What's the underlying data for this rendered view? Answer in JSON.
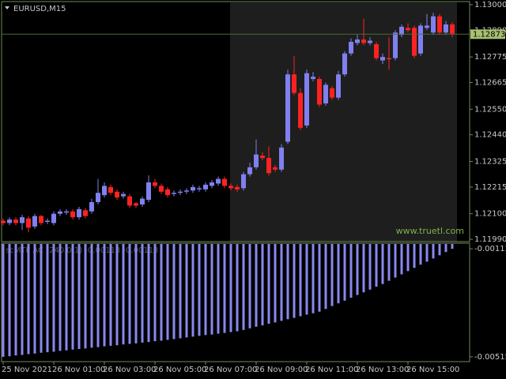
{
  "chart_data": [
    {
      "type": "candlestick",
      "title": "EURUSD,M15",
      "watermark": "www.truetl.com",
      "bull_color": "#8080f0",
      "bear_color": "#ff2222",
      "ylim": [
        1.1198,
        1.1301
      ],
      "yticks": [
        {
          "value": 1.13,
          "label": "1.13000"
        },
        {
          "value": 1.1289,
          "label": "1.12890"
        },
        1.12775,
        1.12665,
        {
          "value": 1.1255,
          "label": "1.12550"
        },
        {
          "value": 1.1244,
          "label": "1.12440"
        },
        1.12325,
        1.12215,
        {
          "value": 1.121,
          "label": "1.12100"
        },
        {
          "value": 1.1199,
          "label": "1.11990"
        }
      ],
      "current_price": 1.12873,
      "xticks": [
        {
          "value": 0,
          "label": "25 Nov 2021"
        },
        {
          "value": 8,
          "label": "26 Nov 01:00"
        },
        {
          "value": 16,
          "label": "26 Nov 03:00"
        },
        {
          "value": 24,
          "label": "26 Nov 05:00"
        },
        {
          "value": 32,
          "label": "26 Nov 07:00"
        },
        {
          "value": 40,
          "label": "26 Nov 09:00"
        },
        {
          "value": 48,
          "label": "26 Nov 11:00"
        },
        {
          "value": 56,
          "label": "26 Nov 13:00"
        },
        {
          "value": 64,
          "label": "26 Nov 15:00"
        }
      ],
      "open": [
        1.1207,
        1.1206,
        1.12075,
        1.1206,
        1.1208,
        1.12045,
        1.1209,
        1.12065,
        1.1206,
        1.121,
        1.12105,
        1.1211,
        1.12085,
        1.12115,
        1.1211,
        1.1215,
        1.1218,
        1.12215,
        1.12195,
        1.12175,
        1.12175,
        1.12145,
        1.1214,
        1.1216,
        1.12235,
        1.1222,
        1.12205,
        1.12185,
        1.1219,
        1.12195,
        1.122,
        1.12205,
        1.12205,
        1.1222,
        1.1223,
        1.1225,
        1.1222,
        1.12215,
        1.1221,
        1.1227,
        1.123,
        1.1235,
        1.1234,
        1.123,
        1.1229,
        1.1241,
        1.127,
        1.1262,
        1.1248,
        1.1268,
        1.1268,
        1.12575,
        1.1264,
        1.126,
        1.127,
        1.1279,
        1.12835,
        1.1285,
        1.12835,
        1.1283,
        1.1276,
        1.1277,
        1.1277,
        1.1287,
        1.129,
        1.129,
        1.1279,
        1.129,
        1.1288,
        1.1295,
        1.1288,
        1.12915
      ],
      "high": [
        1.1208,
        1.12085,
        1.12085,
        1.12095,
        1.1209,
        1.121,
        1.12095,
        1.1208,
        1.1211,
        1.1212,
        1.1212,
        1.1212,
        1.1213,
        1.12125,
        1.12165,
        1.1225,
        1.12235,
        1.12225,
        1.12205,
        1.12195,
        1.12185,
        1.1215,
        1.12175,
        1.12265,
        1.1225,
        1.1223,
        1.12215,
        1.122,
        1.12205,
        1.1221,
        1.12225,
        1.1222,
        1.12235,
        1.12245,
        1.1226,
        1.1226,
        1.1223,
        1.12225,
        1.1228,
        1.1232,
        1.1242,
        1.12365,
        1.1239,
        1.1231,
        1.124,
        1.1272,
        1.1278,
        1.1264,
        1.1272,
        1.1271,
        1.1269,
        1.12665,
        1.1265,
        1.12715,
        1.128,
        1.12855,
        1.1287,
        1.1294,
        1.1286,
        1.1284,
        1.1279,
        1.1286,
        1.1289,
        1.12915,
        1.1292,
        1.1291,
        1.1292,
        1.1296,
        1.12965,
        1.1296,
        1.1293,
        1.12925
      ],
      "low": [
        1.1205,
        1.1205,
        1.1205,
        1.1203,
        1.1202,
        1.12035,
        1.1205,
        1.12055,
        1.1205,
        1.1209,
        1.12095,
        1.12075,
        1.12075,
        1.1208,
        1.121,
        1.1214,
        1.1217,
        1.1218,
        1.1216,
        1.12165,
        1.12125,
        1.12125,
        1.1213,
        1.1215,
        1.1221,
        1.12185,
        1.1217,
        1.12175,
        1.1218,
        1.12185,
        1.1219,
        1.12195,
        1.12195,
        1.1221,
        1.1222,
        1.1221,
        1.122,
        1.12195,
        1.122,
        1.1226,
        1.1229,
        1.1233,
        1.12265,
        1.1228,
        1.1228,
        1.124,
        1.1261,
        1.1246,
        1.1247,
        1.1267,
        1.1256,
        1.12565,
        1.1259,
        1.1259,
        1.1269,
        1.1278,
        1.12825,
        1.12825,
        1.12825,
        1.1276,
        1.12745,
        1.1272,
        1.1276,
        1.1286,
        1.1288,
        1.1277,
        1.1278,
        1.1289,
        1.1287,
        1.1287,
        1.1287,
        1.1286
      ],
      "close": [
        1.1206,
        1.12075,
        1.1206,
        1.12085,
        1.1204,
        1.1209,
        1.1206,
        1.1207,
        1.121,
        1.1211,
        1.1211,
        1.12085,
        1.1212,
        1.1209,
        1.1215,
        1.1219,
        1.1222,
        1.1219,
        1.1217,
        1.12185,
        1.12135,
        1.12135,
        1.12165,
        1.12235,
        1.1222,
        1.12195,
        1.1218,
        1.1219,
        1.12195,
        1.122,
        1.12215,
        1.1221,
        1.12225,
        1.12235,
        1.1225,
        1.1222,
        1.1221,
        1.12205,
        1.1227,
        1.123,
        1.12355,
        1.1234,
        1.12275,
        1.1229,
        1.12385,
        1.127,
        1.1262,
        1.1247,
        1.12705,
        1.1269,
        1.1257,
        1.12655,
        1.126,
        1.127,
        1.1279,
        1.1284,
        1.1285,
        1.12835,
        1.12845,
        1.1277,
        1.12775,
        1.12765,
        1.1288,
        1.12905,
        1.1289,
        1.1278,
        1.1291,
        1.1291,
        1.1295,
        1.1288,
        1.12915,
        1.12875
      ]
    },
    {
      "type": "bar",
      "title": "scMTF AC (240,0,1) -0.00113 -0.00113",
      "color": "#8888ee",
      "ylim": [
        -0.00533,
        -0.00095
      ],
      "yticks": [
        -0.00113,
        -0.00515
      ],
      "values": [
        -0.00515,
        -0.00513,
        -0.0051,
        -0.00508,
        -0.00505,
        -0.00503,
        -0.005,
        -0.00498,
        -0.00496,
        -0.00493,
        -0.00491,
        -0.00488,
        -0.00486,
        -0.00484,
        -0.00481,
        -0.00479,
        -0.00476,
        -0.00474,
        -0.00472,
        -0.00469,
        -0.00467,
        -0.00465,
        -0.00462,
        -0.0046,
        -0.00457,
        -0.00455,
        -0.00452,
        -0.00449,
        -0.00446,
        -0.00443,
        -0.0044,
        -0.00437,
        -0.00434,
        -0.00432,
        -0.00429,
        -0.00426,
        -0.00423,
        -0.0042,
        -0.00415,
        -0.00409,
        -0.00403,
        -0.00398,
        -0.00392,
        -0.00387,
        -0.00381,
        -0.00375,
        -0.0037,
        -0.00364,
        -0.00358,
        -0.00353,
        -0.00347,
        -0.00337,
        -0.00326,
        -0.00316,
        -0.00306,
        -0.00295,
        -0.00285,
        -0.00275,
        -0.00265,
        -0.00254,
        -0.00244,
        -0.00232,
        -0.0022,
        -0.00208,
        -0.00196,
        -0.00184,
        -0.00172,
        -0.00161,
        -0.00149,
        -0.00137,
        -0.00125,
        -0.00113
      ]
    }
  ]
}
